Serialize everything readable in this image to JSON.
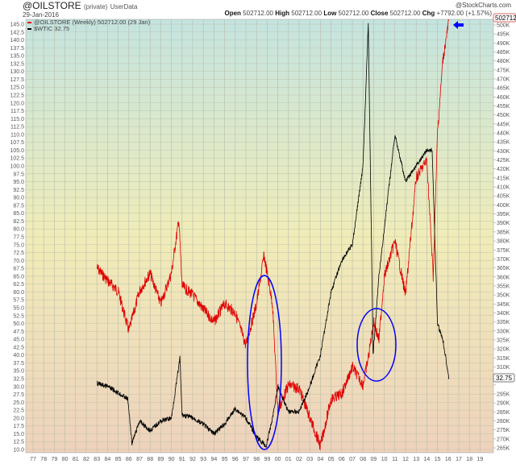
{
  "header": {
    "symbol": "@OILSTORE",
    "privacy": "(private)",
    "source": "UserData",
    "date": "29-Jan-2016",
    "brand": "@StockCharts.com",
    "open_label": "Open",
    "open": "502712.00",
    "high_label": "High",
    "high": "502712.00",
    "low_label": "Low",
    "low": "502712.00",
    "close_label": "Close",
    "close": "502712.00",
    "chg_label": "Chg",
    "chg": "+7792.00 (+1.57%)"
  },
  "chart_data": {
    "type": "line",
    "legend": [
      {
        "name": "@OILSTORE (Weekly) 502712.00 (29 Jan)",
        "color": "#e00000"
      },
      {
        "name": "$WTIC 32.75",
        "color": "#000000"
      }
    ],
    "legend_placement": "top-left",
    "grid": true,
    "x_ticks": [
      "77",
      "78",
      "79",
      "80",
      "81",
      "82",
      "83",
      "84",
      "85",
      "86",
      "87",
      "88",
      "89",
      "90",
      "91",
      "92",
      "93",
      "94",
      "95",
      "96",
      "97",
      "98",
      "99",
      "00",
      "01",
      "02",
      "03",
      "04",
      "05",
      "06",
      "07",
      "08",
      "09",
      "10",
      "11",
      "12",
      "13",
      "14",
      "15",
      "16",
      "17",
      "18",
      "19"
    ],
    "xlim": [
      1977,
      2019
    ],
    "left_axis": {
      "ylim": [
        10,
        145
      ],
      "step": 2.5
    },
    "right_axis": {
      "ylim": [
        265000,
        500000
      ],
      "step": 5000,
      "tick_suffix": "K"
    },
    "series": [
      {
        "name": "@OILSTORE",
        "axis": "right",
        "color": "#e00000",
        "x": [
          1983,
          1984,
          1985,
          1986,
          1987,
          1988,
          1989,
          1990,
          1990.7,
          1991,
          1992,
          1993,
          1994,
          1995,
          1996,
          1997,
          1998,
          1998.7,
          1999.5,
          2000,
          2001,
          2002,
          2003,
          2004,
          2005,
          2006,
          2007,
          2008,
          2008.5,
          2009,
          2009.5,
          2010,
          2011,
          2012,
          2013,
          2014,
          2014.6,
          2015,
          2015.5,
          2016.08
        ],
        "values": [
          365000,
          358000,
          352000,
          330000,
          352000,
          362000,
          345000,
          362000,
          392000,
          355000,
          350000,
          342000,
          335000,
          345000,
          340000,
          322000,
          345000,
          372000,
          345000,
          285000,
          300000,
          298000,
          282000,
          266000,
          292000,
          295000,
          310000,
          300000,
          315000,
          335000,
          325000,
          360000,
          380000,
          350000,
          415000,
          425000,
          360000,
          440000,
          480000,
          502712
        ]
      },
      {
        "name": "$WTIC",
        "axis": "left",
        "color": "#000000",
        "x": [
          1983,
          1984,
          1985,
          1985.9,
          1986.3,
          1987,
          1988,
          1989,
          1990,
          1990.8,
          1991,
          1992,
          1993,
          1994,
          1995,
          1996,
          1997,
          1998,
          1998.9,
          1999.5,
          2000,
          2001,
          2002,
          2003,
          2004,
          2005,
          2006,
          2007,
          2008,
          2008.5,
          2008.95,
          2009.5,
          2010,
          2011,
          2012,
          2013,
          2014,
          2014.5,
          2015,
          2015.5,
          2016.08
        ],
        "values": [
          31,
          30,
          28,
          26,
          12,
          19,
          16,
          19,
          20,
          39,
          21,
          20,
          18,
          15,
          18,
          23,
          20,
          14,
          11,
          20,
          30,
          22,
          22,
          30,
          40,
          60,
          70,
          75,
          100,
          145,
          40,
          65,
          80,
          110,
          95,
          100,
          105,
          105,
          50,
          45,
          32.75
        ]
      }
    ]
  },
  "badges": {
    "oilstore_last": "502712.0",
    "wtic_last": "32.75"
  },
  "colors": {
    "annotation": "#0000ff",
    "bg_top": "#c4e4e0",
    "bg_mid": "#f0ecb8",
    "bg_bottom": "#eed2bc"
  }
}
